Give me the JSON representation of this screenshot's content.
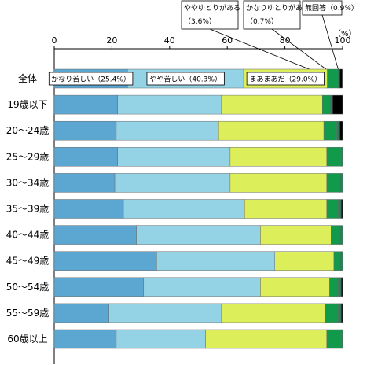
{
  "chart_data": {
    "type": "bar",
    "orientation": "horizontal-stacked",
    "unit": "（%）",
    "xlim": [
      0,
      100
    ],
    "x_ticks": [
      "0",
      "20",
      "40",
      "60",
      "80",
      "100"
    ],
    "grid": false,
    "categories": [
      "全体",
      "19歳以下",
      "20～24歳",
      "25～29歳",
      "30～34歳",
      "35～39歳",
      "40～44歳",
      "45～49歳",
      "50～54歳",
      "55～59歳",
      "60歳以上"
    ],
    "series": [
      {
        "name": "かなり苦しい",
        "color": "#5ba7d1",
        "values": [
          25.4,
          22.0,
          21.5,
          22.0,
          21.0,
          24.0,
          28.5,
          35.5,
          31.0,
          19.0,
          21.5
        ]
      },
      {
        "name": "やや苦しい",
        "color": "#94d3e5",
        "values": [
          40.3,
          36.0,
          35.5,
          39.0,
          40.0,
          42.0,
          43.0,
          41.0,
          40.5,
          39.0,
          31.0
        ]
      },
      {
        "name": "まあまあだ",
        "color": "#dcee5a",
        "values": [
          29.0,
          35.0,
          36.5,
          33.5,
          33.5,
          28.5,
          24.5,
          20.5,
          24.0,
          36.0,
          42.0
        ]
      },
      {
        "name": "ややゆとりがある",
        "color": "#129a4c",
        "values": [
          3.6,
          2.5,
          4.5,
          5.0,
          4.5,
          4.0,
          3.0,
          2.0,
          3.0,
          4.5,
          5.0
        ]
      },
      {
        "name": "かなりゆとりがある",
        "color": "#2a7f5a",
        "values": [
          0.7,
          1.0,
          1.0,
          0.5,
          1.0,
          1.0,
          1.0,
          1.0,
          1.0,
          1.0,
          0.5
        ]
      },
      {
        "name": "無回答",
        "color": "#000000",
        "values": [
          0.9,
          3.5,
          1.0,
          0.0,
          0.0,
          0.5,
          0.0,
          0.0,
          0.5,
          0.5,
          0.0
        ]
      }
    ],
    "inbar_labels": [
      "かなり苦しい（25.4%）",
      "やや苦しい（40.3%）",
      "まあまあだ（29.0%）"
    ],
    "callout_labels": [
      {
        "line1": "ややゆとりがある",
        "line2": "（3.6%）"
      },
      {
        "line1": "かなりゆとりがある",
        "line2": "（0.7%）"
      },
      {
        "line1": "無回答（0.9%）",
        "line2": ""
      }
    ]
  }
}
